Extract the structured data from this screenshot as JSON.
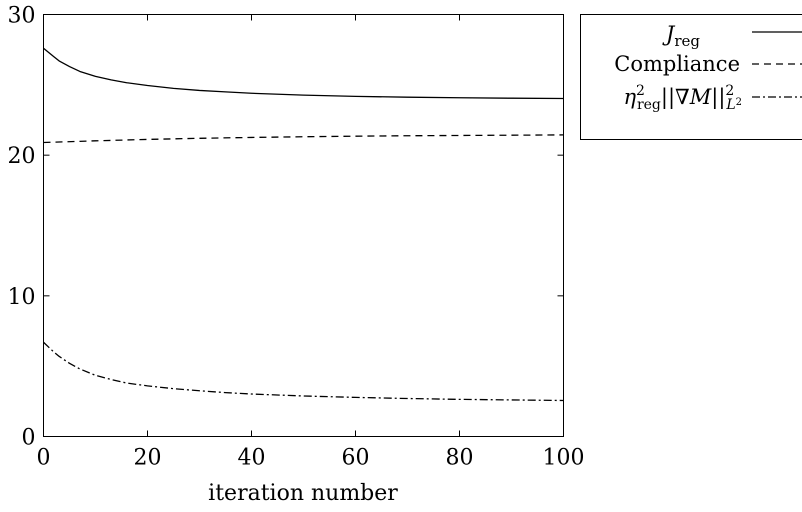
{
  "chart_data": {
    "type": "line",
    "xlabel": "iteration number",
    "ylabel": "",
    "xlim": [
      0,
      100
    ],
    "ylim": [
      0,
      30
    ],
    "xticks": [
      0,
      20,
      40,
      60,
      80,
      100
    ],
    "yticks": [
      0,
      10,
      20,
      30
    ],
    "grid": false,
    "legend_position": "outside top-right",
    "series": [
      {
        "name": "J_reg",
        "dash": "solid",
        "color": "#000000",
        "x": [
          0,
          1,
          2,
          3,
          5,
          7,
          10,
          13,
          16,
          20,
          25,
          30,
          35,
          40,
          50,
          60,
          70,
          80,
          90,
          100
        ],
        "y": [
          27.6,
          27.3,
          27.0,
          26.7,
          26.3,
          25.95,
          25.6,
          25.35,
          25.15,
          24.95,
          24.75,
          24.6,
          24.5,
          24.4,
          24.27,
          24.18,
          24.12,
          24.08,
          24.05,
          24.03
        ]
      },
      {
        "name": "Compliance",
        "dash": "dashed",
        "color": "#000000",
        "x": [
          0,
          10,
          20,
          30,
          40,
          50,
          60,
          70,
          80,
          90,
          100
        ],
        "y": [
          20.9,
          21.02,
          21.12,
          21.2,
          21.26,
          21.31,
          21.35,
          21.38,
          21.4,
          21.42,
          21.44
        ]
      },
      {
        "name": "eta_reg^2 ||grad M||^2_L2",
        "dash": "dashdot",
        "color": "#000000",
        "x": [
          0,
          1,
          2,
          3,
          5,
          7,
          10,
          13,
          16,
          20,
          25,
          30,
          35,
          40,
          50,
          60,
          70,
          80,
          90,
          100
        ],
        "y": [
          6.7,
          6.35,
          6.0,
          5.7,
          5.2,
          4.8,
          4.35,
          4.05,
          3.8,
          3.6,
          3.4,
          3.25,
          3.12,
          3.02,
          2.88,
          2.78,
          2.7,
          2.64,
          2.6,
          2.56
        ]
      }
    ]
  }
}
